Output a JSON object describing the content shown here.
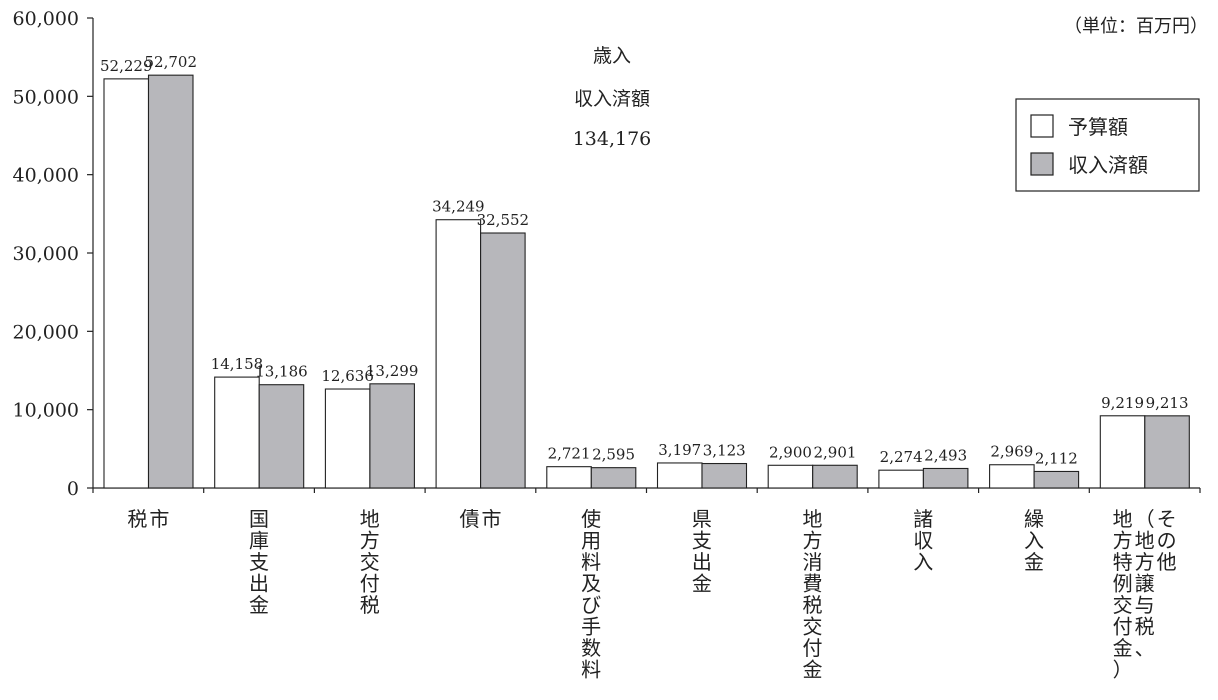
{
  "chart_data": {
    "type": "bar",
    "unit_label": "（単位：百万円）",
    "center_annotation": [
      "歳入",
      "収入済額",
      "134,176"
    ],
    "categories": [
      [
        "市",
        "税"
      ],
      [
        "国庫支出金"
      ],
      [
        "地方交付税"
      ],
      [
        "市",
        "債"
      ],
      [
        "使用料及び手数料"
      ],
      [
        "県支出金"
      ],
      [
        "地方消費税交付金"
      ],
      [
        "諸収入"
      ],
      [
        "繰入金"
      ],
      [
        "その他",
        "（地方譲与税、",
        "地方特例交付金）"
      ]
    ],
    "series": [
      {
        "name": "予算額",
        "color": "#ffffff",
        "values": [
          52229,
          14158,
          12636,
          34249,
          2721,
          3197,
          2900,
          2274,
          2969,
          9219
        ],
        "labels": [
          "52,229",
          "14,158",
          "12,636",
          "34,249",
          "2,721",
          "3,197",
          "2,900",
          "2,274",
          "2,969",
          "9,219"
        ]
      },
      {
        "name": "収入済額",
        "color": "#b7b7bb",
        "values": [
          52702,
          13186,
          13299,
          32552,
          2595,
          3123,
          2901,
          2493,
          2112,
          9213
        ],
        "labels": [
          "52,702",
          "13,186",
          "13,299",
          "32,552",
          "2,595",
          "3,123",
          "2,901",
          "2,493",
          "2,112",
          "9,213"
        ]
      }
    ],
    "yticks": [
      "0",
      "10,000",
      "20,000",
      "30,000",
      "40,000",
      "50,000",
      "60,000"
    ],
    "ylim": [
      0,
      60000
    ],
    "grid": false,
    "legend_position": "top-right"
  }
}
